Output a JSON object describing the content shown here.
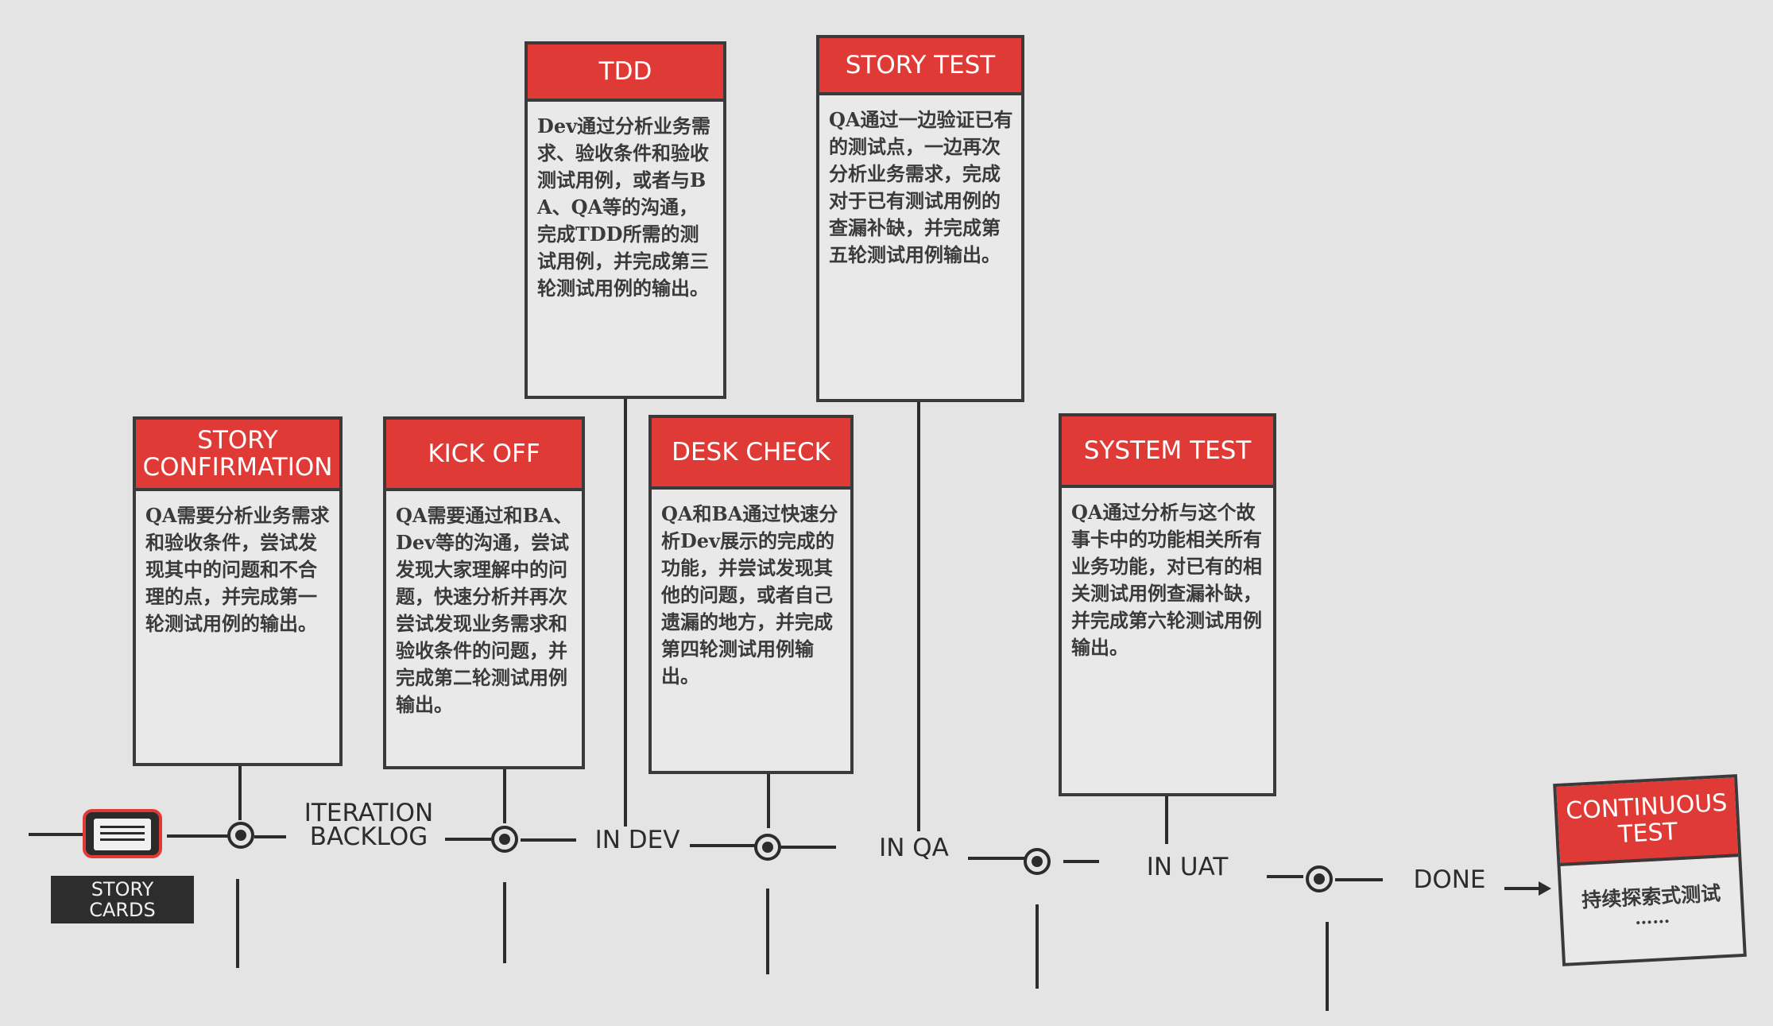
{
  "flow": {
    "story_cards": "STORY\nCARDS",
    "columns": [
      "ITERATION\nBACKLOG",
      "IN DEV",
      "IN QA",
      "IN UAT",
      "DONE"
    ]
  },
  "stages": {
    "story_confirmation": {
      "title": "STORY\nCONFIRMATION",
      "desc": "QA需要分析业务需求和验收条件，尝试发现其中的问题和不合理的点，并完成第一轮测试用例的输出。"
    },
    "kick_off": {
      "title": "KICK OFF",
      "desc": "QA需要通过和BA、Dev等的沟通，尝试发现大家理解中的问题，快速分析并再次尝试发现业务需求和验收条件的问题，并完成第二轮测试用例输出。"
    },
    "tdd": {
      "title": "TDD",
      "desc": "Dev通过分析业务需求、验收条件和验收测试用例，或者与BA、QA等的沟通，完成TDD所需的测试用例，并完成第三轮测试用例的输出。"
    },
    "desk_check": {
      "title": "DESK CHECK",
      "desc": "QA和BA通过快速分析Dev展示的完成的功能，并尝试发现其他的问题，或者自己遗漏的地方，并完成第四轮测试用例输出。"
    },
    "story_test": {
      "title": "STORY TEST",
      "desc": "QA通过一边验证已有的测试点，一边再次分析业务需求，完成对于已有测试用例的查漏补缺，并完成第五轮测试用例输出。"
    },
    "system_test": {
      "title": "SYSTEM TEST",
      "desc": "QA通过分析与这个故事卡中的功能相关所有业务功能，对已有的相关测试用例查漏补缺，并完成第六轮测试用例输出。"
    },
    "continuous_test": {
      "title": "CONTINUOUS\nTEST",
      "desc": "持续探索式测试",
      "ellipsis": "……"
    }
  },
  "colors": {
    "accent": "#e03a36",
    "line": "#2c2c2c",
    "background": "#e4e4e4"
  },
  "icons": {
    "story_cards": "story-cards-icon",
    "node": "timeline-node-icon"
  }
}
